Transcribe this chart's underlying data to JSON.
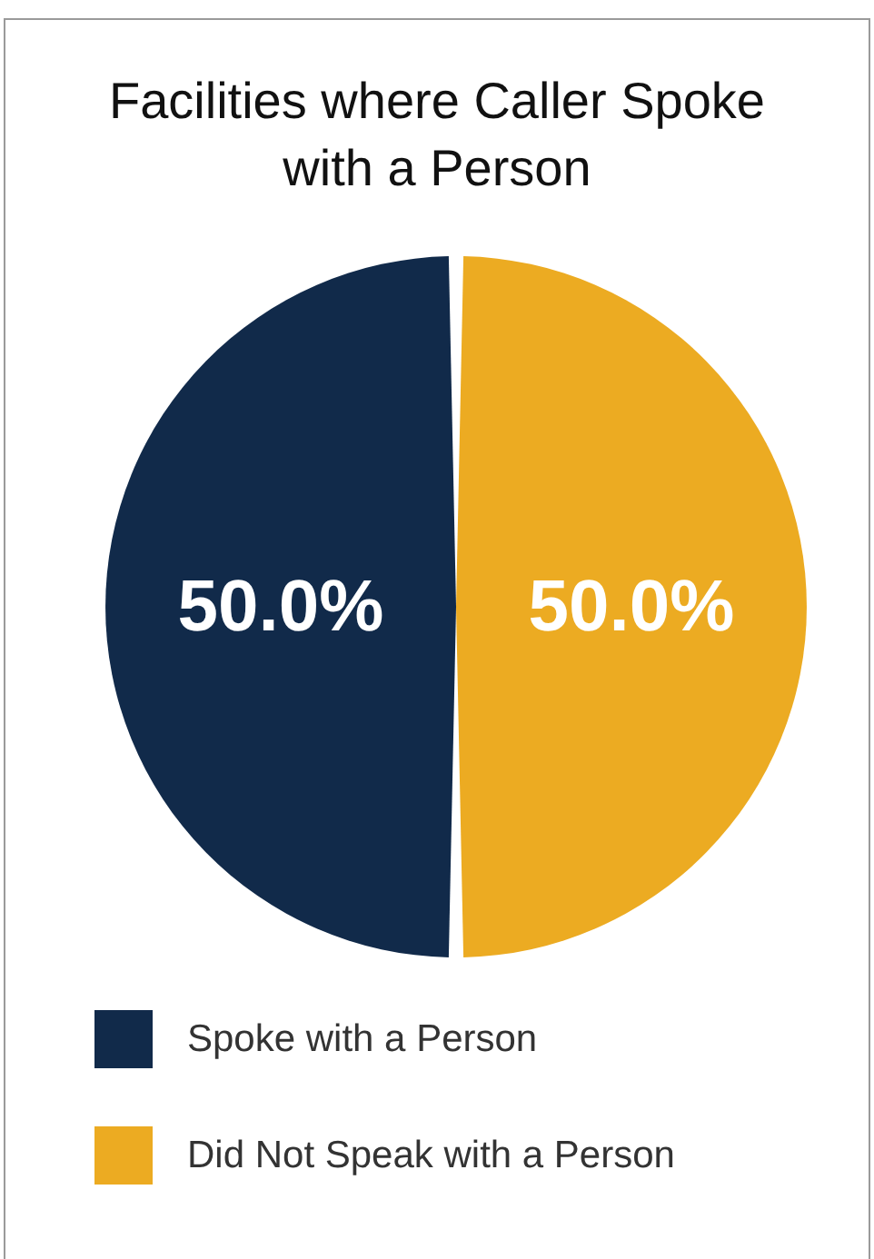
{
  "chart_data": {
    "type": "pie",
    "title": "Facilities where Caller Spoke with a Person",
    "categories": [
      "Spoke with a Person",
      "Did Not Speak with a Person"
    ],
    "values": [
      50,
      50
    ],
    "colors": [
      "#112a4a",
      "#ecab22"
    ],
    "value_labels": [
      "50.0%",
      "50.0%"
    ],
    "legend": "bottom"
  }
}
